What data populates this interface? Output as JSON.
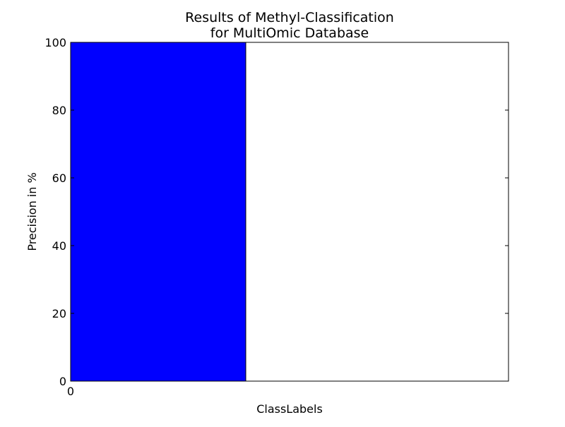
{
  "chart_data": {
    "type": "bar",
    "title": "Results of Methyl-Classification",
    "subtitle": "for MultiOmic Database",
    "xlabel": "ClassLabels",
    "ylabel": "Precision in %",
    "categories": [
      "0"
    ],
    "values": [
      100
    ],
    "ylim": [
      0,
      100
    ],
    "xlim": [
      -0.4,
      1.6
    ],
    "yticks": [
      0,
      20,
      40,
      60,
      80,
      100
    ],
    "xticks": [
      "0"
    ],
    "grid": false,
    "bar_color": "#0000ff"
  }
}
